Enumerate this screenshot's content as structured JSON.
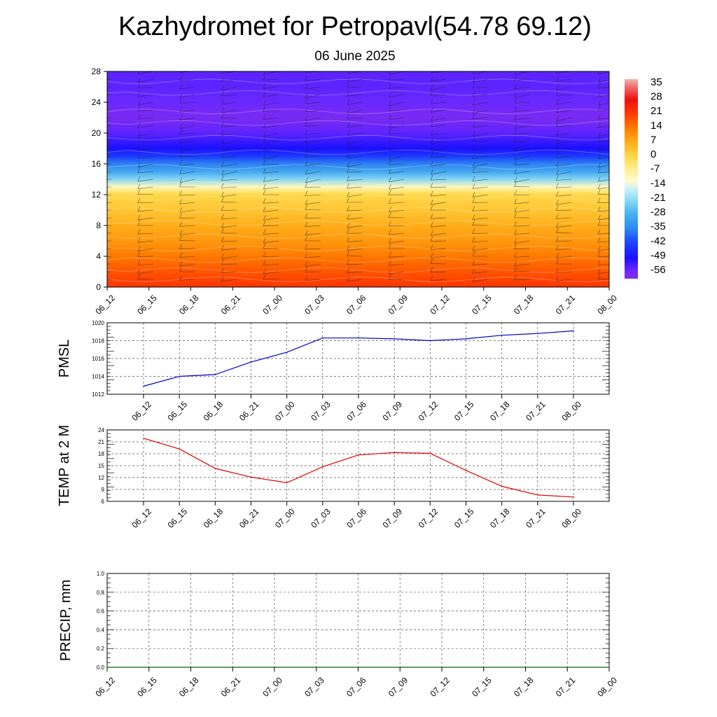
{
  "page": {
    "title": "Kazhydromet for Petropavl(54.78 69.12)",
    "subtitle": "06 June 2025"
  },
  "chart_data": [
    {
      "type": "heatmap",
      "name": "temperature-height-section",
      "x_ticks": [
        "06_12",
        "06_15",
        "06_18",
        "06_21",
        "07_00",
        "07_03",
        "07_06",
        "07_09",
        "07_12",
        "07_15",
        "07_18",
        "07_21",
        "08_00"
      ],
      "y_ticks": [
        0,
        4,
        8,
        12,
        16,
        20,
        24,
        28
      ],
      "ylim": [
        0,
        28
      ],
      "colorbar_labels": [
        35,
        28,
        21,
        14,
        7,
        0,
        -7,
        -14,
        -21,
        -28,
        -35,
        -42,
        -49,
        -56
      ],
      "colorbar_range": [
        -60,
        38
      ],
      "legend_position": "right",
      "colors": {
        "warm_high": "#ff1a00",
        "warm_mid": "#ff9a00",
        "warm_low": "#ffd84a",
        "zero": "#fffde0",
        "cold_light": "#7fd6f5",
        "cold_mid": "#2f8cf0",
        "cold_deep": "#1020ff",
        "cold_extreme": "#6a28ff"
      },
      "temperature_profile_by_height": [
        {
          "h": 0,
          "t": 22
        },
        {
          "h": 2,
          "t": 18
        },
        {
          "h": 4,
          "t": 14
        },
        {
          "h": 6,
          "t": 10
        },
        {
          "h": 8,
          "t": 7
        },
        {
          "h": 10,
          "t": 3
        },
        {
          "h": 12,
          "t": 0
        },
        {
          "h": 13,
          "t": -10
        },
        {
          "h": 14,
          "t": -22
        },
        {
          "h": 15,
          "t": -30
        },
        {
          "h": 16,
          "t": -36
        },
        {
          "h": 17,
          "t": -44
        },
        {
          "h": 18,
          "t": -50
        },
        {
          "h": 20,
          "t": -55
        },
        {
          "h": 22,
          "t": -58
        },
        {
          "h": 24,
          "t": -56
        },
        {
          "h": 26,
          "t": -55
        },
        {
          "h": 28,
          "t": -55
        }
      ],
      "grid": false
    },
    {
      "type": "line",
      "name": "pmsl",
      "ylabel": "PMSL",
      "x": [
        "06_12",
        "06_15",
        "06_18",
        "06_21",
        "07_00",
        "07_03",
        "07_06",
        "07_09",
        "07_12",
        "07_15",
        "07_18",
        "07_21",
        "08_00"
      ],
      "values": [
        1012.9,
        1014.0,
        1014.2,
        1015.6,
        1016.7,
        1018.3,
        1018.3,
        1018.2,
        1018.0,
        1018.2,
        1018.6,
        1018.8,
        1019.1
      ],
      "ylim": [
        1012,
        1020
      ],
      "y_ticks": [
        1012,
        1014,
        1016,
        1018,
        1020
      ],
      "color": "#0000cc",
      "grid": true
    },
    {
      "type": "line",
      "name": "temp-2m",
      "ylabel": "TEMP at 2 M",
      "x": [
        "06_12",
        "06_15",
        "06_18",
        "06_21",
        "07_00",
        "07_03",
        "07_06",
        "07_09",
        "07_12",
        "07_15",
        "07_18",
        "07_21",
        "08_00"
      ],
      "values": [
        21.9,
        19.2,
        14.3,
        12.1,
        10.7,
        14.7,
        17.7,
        18.3,
        18.1,
        13.8,
        9.8,
        7.6,
        7.1
      ],
      "ylim": [
        6,
        24
      ],
      "y_ticks": [
        6,
        9,
        12,
        15,
        18,
        21,
        24
      ],
      "color": "#e00000",
      "grid": true
    },
    {
      "type": "line",
      "name": "precip",
      "ylabel": "PRECIP, mm",
      "x": [
        "06_12",
        "06_15",
        "06_18",
        "06_21",
        "07_00",
        "07_03",
        "07_06",
        "07_09",
        "07_12",
        "07_15",
        "07_18",
        "07_21",
        "08_00"
      ],
      "values": [
        0,
        0,
        0,
        0,
        0,
        0,
        0,
        0,
        0,
        0,
        0,
        0,
        0
      ],
      "ylim": [
        0,
        1
      ],
      "y_ticks": [
        "0.0",
        "0.2",
        "0.4",
        "0.6",
        "0.8",
        "1.0"
      ],
      "color": "#006400",
      "grid": true
    }
  ]
}
